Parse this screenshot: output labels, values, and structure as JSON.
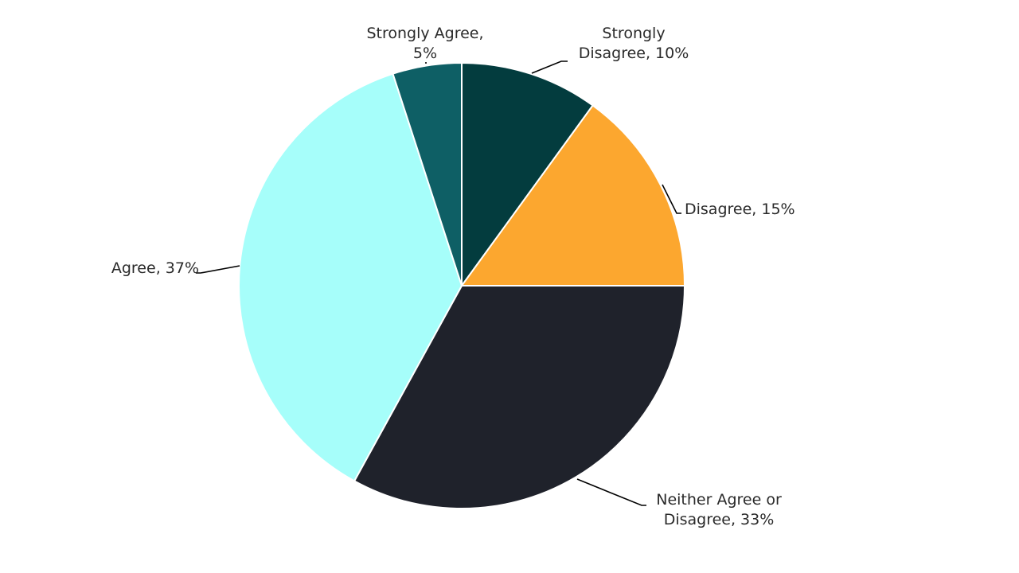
{
  "chart_data": {
    "type": "pie",
    "direction": "clockwise",
    "start_at": "12 o'clock",
    "slices": [
      {
        "category": "Strongly Disagree",
        "value": 10,
        "label_lines": [
          "Strongly",
          "Disagree, 10%"
        ],
        "color": "#033c3e"
      },
      {
        "category": "Disagree",
        "value": 15,
        "label_lines": [
          "Disagree, 15%"
        ],
        "color": "#fca72f"
      },
      {
        "category": "Neither Agree or Disagree",
        "value": 33,
        "label_lines": [
          "Neither Agree or",
          "Disagree, 33%"
        ],
        "color": "#1f222b"
      },
      {
        "category": "Agree",
        "value": 37,
        "label_lines": [
          "Agree, 37%"
        ],
        "color": "#a6fefa"
      },
      {
        "category": "Strongly Agree",
        "value": 5,
        "label_lines": [
          "Strongly Agree,",
          "5%"
        ],
        "color": "#0e5f65"
      }
    ]
  }
}
